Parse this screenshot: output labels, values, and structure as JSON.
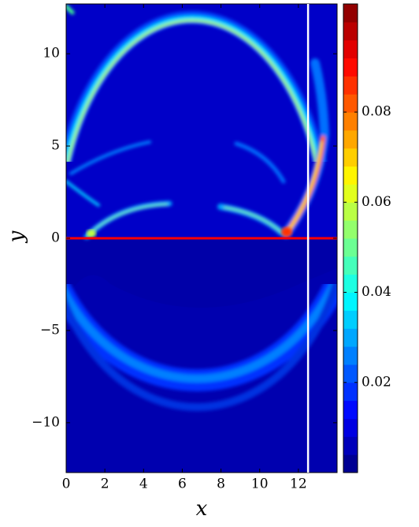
{
  "chart_data": {
    "type": "contourf",
    "xlabel": "x",
    "ylabel": "y",
    "xlim": [
      0,
      14
    ],
    "ylim": [
      -12.7,
      12.7
    ],
    "xticks": [
      0,
      2,
      4,
      6,
      8,
      10,
      12
    ],
    "yticks": [
      {
        "value": -10,
        "label": "−10"
      },
      {
        "value": -5,
        "label": "−5"
      },
      0,
      5,
      10
    ],
    "colormap": "jet",
    "levels": [
      0,
      0.004,
      0.008,
      0.012,
      0.016,
      0.02,
      0.024,
      0.028,
      0.032,
      0.036,
      0.04,
      0.044,
      0.048,
      0.052,
      0.056,
      0.06,
      0.064,
      0.068,
      0.072,
      0.076,
      0.08,
      0.084,
      0.088,
      0.092,
      0.096,
      0.1,
      0.104
    ],
    "colorbar_ticks": [
      0.02,
      0.04,
      0.06,
      0.08
    ],
    "hlines": [
      {
        "y": 0,
        "color": "#ff0000"
      }
    ],
    "vlines": [
      {
        "x": 12.5,
        "color": "#ffffff"
      }
    ]
  }
}
